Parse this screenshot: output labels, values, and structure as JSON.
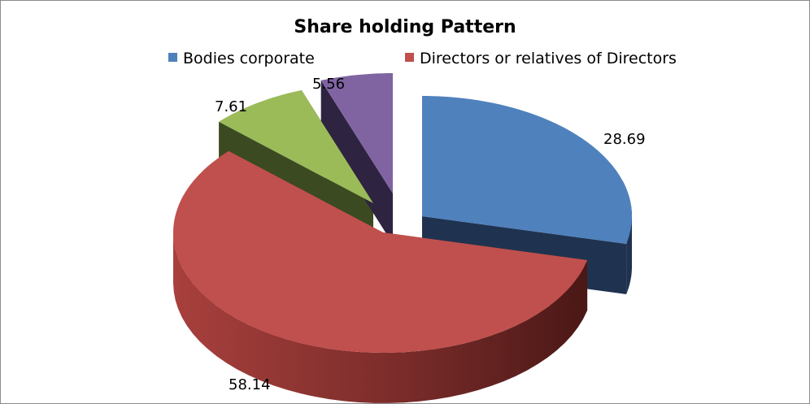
{
  "chart_data": {
    "type": "pie",
    "title": "Share holding  Pattern",
    "slices": [
      {
        "label": "Bodies corporate",
        "value": 28.69,
        "color": "#4F81BD",
        "side_color": "#1F3350",
        "label_text": "28.69"
      },
      {
        "label": "Directors or relatives of Directors",
        "value": 58.14,
        "color": "#C0504D",
        "side_color": "#5A1E1C",
        "label_text": "58.14"
      },
      {
        "label": "",
        "value": 7.61,
        "color": "#9BBB59",
        "side_color": "#3B4A21",
        "label_text": "7.61"
      },
      {
        "label": "",
        "value": 5.56,
        "color": "#8064A2",
        "side_color": "#2E2340",
        "label_text": "5.56"
      }
    ],
    "legend": {
      "placement": "top",
      "entries": [
        "Bodies corporate",
        "Directors or relatives of Directors"
      ]
    },
    "style": "3d-exploded"
  }
}
